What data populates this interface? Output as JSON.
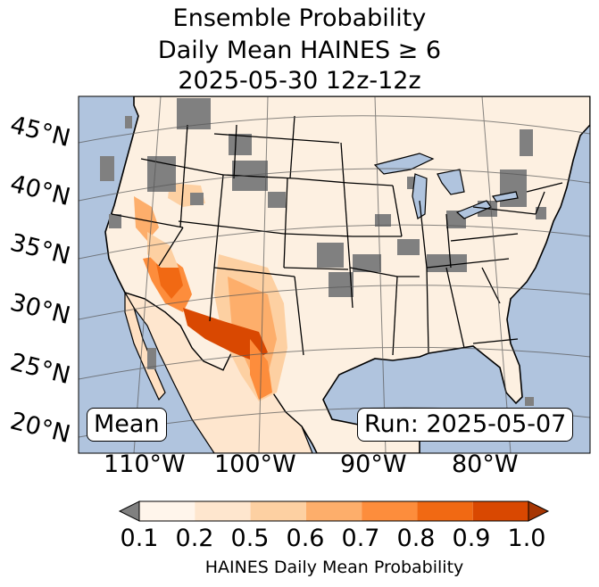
{
  "title": {
    "line1": "Ensemble Probability",
    "line2": "Daily Mean HAINES ≥ 6",
    "line3": "2025-05-30 12z-12z"
  },
  "map": {
    "region": "Continental United States",
    "lat_labels": [
      "45°N",
      "40°N",
      "35°N",
      "30°N",
      "25°N",
      "20°N"
    ],
    "lon_labels": [
      "110°W",
      "100°W",
      "90°W",
      "80°W"
    ],
    "ocean_color": "#b0c4de",
    "land_color": "#ffffff",
    "missing_color": "#808080",
    "mean_label": "Mean",
    "run_label": "Run: 2025-05-07"
  },
  "colorbar": {
    "ticks": [
      "0.1",
      "0.2",
      "0.5",
      "0.6",
      "0.7",
      "0.8",
      "0.9",
      "1.0"
    ],
    "colors": [
      "#fff5eb",
      "#fee6ce",
      "#fdd0a2",
      "#fdae6b",
      "#fd8d3c",
      "#f16913",
      "#d94801",
      "#a63603"
    ],
    "under_color": "#808080",
    "label": "HAINES Daily Mean Probability"
  }
}
